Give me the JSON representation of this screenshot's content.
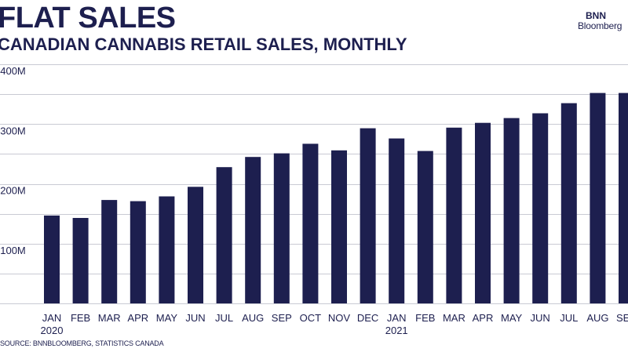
{
  "header": {
    "title": "FLAT SALES",
    "subtitle": "CANADIAN CANNABIS RETAIL SALES, MONTHLY"
  },
  "logo": {
    "line1": "BNN",
    "line2": "Bloomberg"
  },
  "source": "SOURCE: BNNBLOOMBERG, STATISTICS CANADA",
  "colors": {
    "bar": "#1d1f4f",
    "grid": "#c9cad3",
    "text": "#1d1f4f"
  },
  "chart_data": {
    "type": "bar",
    "title": "FLAT SALES",
    "subtitle": "CANADIAN CANNABIS RETAIL SALES, MONTHLY",
    "categories": [
      "JAN",
      "FEB",
      "MAR",
      "APR",
      "MAY",
      "JUN",
      "JUL",
      "AUG",
      "SEP",
      "OCT",
      "NOV",
      "DEC",
      "JAN",
      "FEB",
      "MAR",
      "APR",
      "MAY",
      "JUN",
      "JUL",
      "AUG",
      "SEP"
    ],
    "year_labels": [
      "2020",
      "",
      "",
      "",
      "",
      "",
      "",
      "",
      "",
      "",
      "",
      "",
      "2021",
      "",
      "",
      "",
      "",
      "",
      "",
      "",
      ""
    ],
    "series": [
      {
        "values": [
          147,
          143,
          173,
          171,
          179,
          195,
          228,
          245,
          251,
          267,
          256,
          293,
          276,
          255,
          294,
          302,
          310,
          318,
          335,
          352,
          352
        ]
      }
    ],
    "ylim": [
      0,
      400
    ],
    "yticks": [
      100,
      200,
      300,
      400
    ],
    "ytick_labels": [
      "$100M",
      "$200M",
      "$300M",
      "$400M"
    ],
    "gridlines": [
      50,
      100,
      150,
      200,
      250,
      300,
      350,
      400
    ],
    "grid": true,
    "legend": "none"
  }
}
